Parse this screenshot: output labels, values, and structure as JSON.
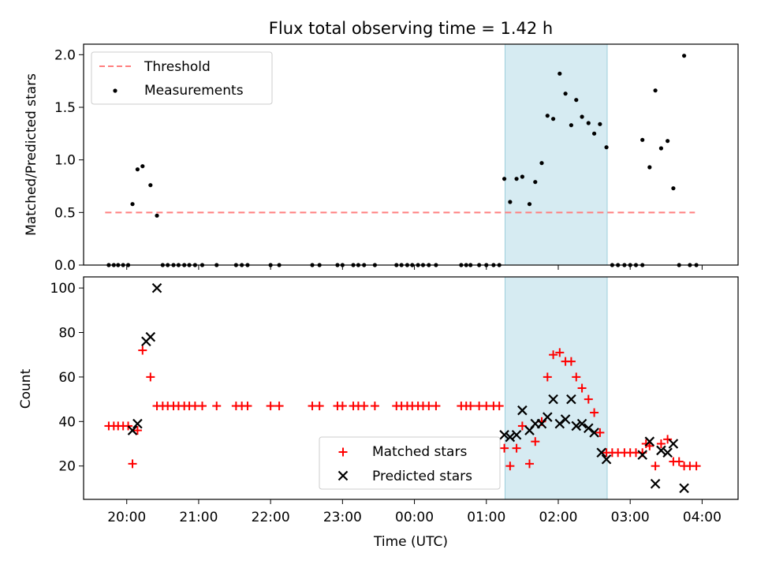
{
  "title": "Flux total observing time = 1.42 h",
  "colors": {
    "threshold": "#ff7f7f",
    "measurements": "#000000",
    "matched": "#ff0000",
    "predicted": "#000000",
    "shade": "#add8e6"
  },
  "chart_data": [
    {
      "type": "scatter",
      "ylabel": "Matched/Predicted stars",
      "ylim": [
        0,
        2.1
      ],
      "yticks": [
        "0.0",
        "0.5",
        "1.0",
        "1.5",
        "2.0"
      ],
      "ytick_values": [
        0,
        0.5,
        1.0,
        1.5,
        2.0
      ],
      "xlim": [
        19.4,
        28.5
      ],
      "xtick_values": [
        20,
        21,
        22,
        23,
        24,
        25,
        26,
        27,
        28
      ],
      "shaded_span": [
        25.26,
        26.68
      ],
      "grid": false,
      "legend_position": "upper-left",
      "legend": {
        "threshold": "Threshold",
        "measurements": "Measurements"
      },
      "threshold": {
        "value": 0.5,
        "x": [
          19.7,
          27.9
        ]
      },
      "series": [
        {
          "name": "Measurements",
          "marker": "dot",
          "points": [
            [
              19.75,
              0
            ],
            [
              19.82,
              0
            ],
            [
              19.88,
              0
            ],
            [
              19.95,
              0
            ],
            [
              20.02,
              0
            ],
            [
              20.08,
              0.58
            ],
            [
              20.15,
              0.91
            ],
            [
              20.22,
              0.94
            ],
            [
              20.33,
              0.76
            ],
            [
              20.42,
              0.47
            ],
            [
              20.5,
              0
            ],
            [
              20.57,
              0
            ],
            [
              20.65,
              0
            ],
            [
              20.72,
              0
            ],
            [
              20.8,
              0
            ],
            [
              20.87,
              0
            ],
            [
              20.95,
              0
            ],
            [
              21.05,
              0
            ],
            [
              21.25,
              0
            ],
            [
              21.52,
              0
            ],
            [
              21.6,
              0
            ],
            [
              21.68,
              0
            ],
            [
              22.0,
              0
            ],
            [
              22.12,
              0
            ],
            [
              22.58,
              0
            ],
            [
              22.68,
              0
            ],
            [
              22.93,
              0
            ],
            [
              23.0,
              0
            ],
            [
              23.15,
              0
            ],
            [
              23.22,
              0
            ],
            [
              23.3,
              0
            ],
            [
              23.45,
              0
            ],
            [
              23.75,
              0
            ],
            [
              23.82,
              0
            ],
            [
              23.9,
              0
            ],
            [
              23.97,
              0
            ],
            [
              24.05,
              0
            ],
            [
              24.12,
              0
            ],
            [
              24.2,
              0
            ],
            [
              24.3,
              0
            ],
            [
              24.65,
              0
            ],
            [
              24.72,
              0
            ],
            [
              24.78,
              0
            ],
            [
              24.9,
              0
            ],
            [
              25.0,
              0
            ],
            [
              25.1,
              0
            ],
            [
              25.18,
              0
            ],
            [
              25.25,
              0.82
            ],
            [
              25.33,
              0.6
            ],
            [
              25.42,
              0.82
            ],
            [
              25.5,
              0.84
            ],
            [
              25.6,
              0.58
            ],
            [
              25.68,
              0.79
            ],
            [
              25.77,
              0.97
            ],
            [
              25.85,
              1.42
            ],
            [
              25.93,
              1.39
            ],
            [
              26.02,
              1.82
            ],
            [
              26.1,
              1.63
            ],
            [
              26.18,
              1.33
            ],
            [
              26.25,
              1.57
            ],
            [
              26.33,
              1.41
            ],
            [
              26.42,
              1.35
            ],
            [
              26.5,
              1.25
            ],
            [
              26.58,
              1.34
            ],
            [
              26.67,
              1.12
            ],
            [
              26.75,
              0
            ],
            [
              26.83,
              0
            ],
            [
              26.92,
              0
            ],
            [
              27.0,
              0
            ],
            [
              27.08,
              0
            ],
            [
              27.17,
              0
            ],
            [
              27.17,
              1.19
            ],
            [
              27.27,
              0.93
            ],
            [
              27.35,
              1.66
            ],
            [
              27.43,
              1.11
            ],
            [
              27.52,
              1.18
            ],
            [
              27.6,
              0.73
            ],
            [
              27.68,
              0
            ],
            [
              27.75,
              1.99
            ],
            [
              27.83,
              0
            ],
            [
              27.92,
              0
            ]
          ]
        }
      ]
    },
    {
      "type": "scatter",
      "xlabel": "Time (UTC)",
      "ylabel": "Count",
      "ylim": [
        5,
        105
      ],
      "yticks": [
        "20",
        "40",
        "60",
        "80",
        "100"
      ],
      "ytick_values": [
        20,
        40,
        60,
        80,
        100
      ],
      "xlim": [
        19.4,
        28.5
      ],
      "xtick_values": [
        20,
        21,
        22,
        23,
        24,
        25,
        26,
        27,
        28
      ],
      "xticks": [
        "20:00",
        "21:00",
        "22:00",
        "23:00",
        "00:00",
        "01:00",
        "02:00",
        "03:00",
        "04:00"
      ],
      "shaded_span": [
        25.26,
        26.68
      ],
      "grid": false,
      "legend_position": "lower-center",
      "series": [
        {
          "name": "Matched stars",
          "marker": "plus",
          "points": [
            [
              19.75,
              38
            ],
            [
              19.82,
              38
            ],
            [
              19.88,
              38
            ],
            [
              19.95,
              38
            ],
            [
              20.02,
              38
            ],
            [
              20.08,
              21
            ],
            [
              20.15,
              36
            ],
            [
              20.22,
              72
            ],
            [
              20.33,
              60
            ],
            [
              20.42,
              47
            ],
            [
              20.5,
              47
            ],
            [
              20.57,
              47
            ],
            [
              20.65,
              47
            ],
            [
              20.72,
              47
            ],
            [
              20.8,
              47
            ],
            [
              20.87,
              47
            ],
            [
              20.95,
              47
            ],
            [
              21.05,
              47
            ],
            [
              21.25,
              47
            ],
            [
              21.52,
              47
            ],
            [
              21.6,
              47
            ],
            [
              21.68,
              47
            ],
            [
              22.0,
              47
            ],
            [
              22.12,
              47
            ],
            [
              22.58,
              47
            ],
            [
              22.68,
              47
            ],
            [
              22.93,
              47
            ],
            [
              23.0,
              47
            ],
            [
              23.15,
              47
            ],
            [
              23.22,
              47
            ],
            [
              23.3,
              47
            ],
            [
              23.45,
              47
            ],
            [
              23.75,
              47
            ],
            [
              23.82,
              47
            ],
            [
              23.9,
              47
            ],
            [
              23.97,
              47
            ],
            [
              24.05,
              47
            ],
            [
              24.12,
              47
            ],
            [
              24.2,
              47
            ],
            [
              24.3,
              47
            ],
            [
              24.65,
              47
            ],
            [
              24.72,
              47
            ],
            [
              24.78,
              47
            ],
            [
              24.9,
              47
            ],
            [
              25.0,
              47
            ],
            [
              25.1,
              47
            ],
            [
              25.18,
              47
            ],
            [
              25.25,
              28
            ],
            [
              25.33,
              20
            ],
            [
              25.42,
              28
            ],
            [
              25.5,
              38
            ],
            [
              25.6,
              21
            ],
            [
              25.68,
              31
            ],
            [
              25.77,
              40
            ],
            [
              25.85,
              60
            ],
            [
              25.93,
              70
            ],
            [
              26.02,
              71
            ],
            [
              26.1,
              67
            ],
            [
              26.18,
              67
            ],
            [
              26.25,
              60
            ],
            [
              26.33,
              55
            ],
            [
              26.42,
              50
            ],
            [
              26.5,
              44
            ],
            [
              26.58,
              35
            ],
            [
              26.67,
              26
            ],
            [
              26.75,
              26
            ],
            [
              26.83,
              26
            ],
            [
              26.92,
              26
            ],
            [
              27.0,
              26
            ],
            [
              27.08,
              26
            ],
            [
              27.17,
              26
            ],
            [
              27.22,
              30
            ],
            [
              27.27,
              29
            ],
            [
              27.35,
              20
            ],
            [
              27.43,
              30
            ],
            [
              27.52,
              32
            ],
            [
              27.6,
              22
            ],
            [
              27.68,
              22
            ],
            [
              27.75,
              20
            ],
            [
              27.83,
              20
            ],
            [
              27.92,
              20
            ]
          ]
        },
        {
          "name": "Predicted stars",
          "marker": "x",
          "points": [
            [
              20.08,
              36
            ],
            [
              20.15,
              39
            ],
            [
              20.27,
              76
            ],
            [
              20.33,
              78
            ],
            [
              20.42,
              100
            ],
            [
              25.25,
              34
            ],
            [
              25.33,
              33
            ],
            [
              25.42,
              34
            ],
            [
              25.5,
              45
            ],
            [
              25.6,
              36
            ],
            [
              25.68,
              39
            ],
            [
              25.77,
              39
            ],
            [
              25.85,
              42
            ],
            [
              25.93,
              50
            ],
            [
              26.02,
              39
            ],
            [
              26.1,
              41
            ],
            [
              26.18,
              50
            ],
            [
              26.25,
              38
            ],
            [
              26.33,
              39
            ],
            [
              26.42,
              37
            ],
            [
              26.5,
              35
            ],
            [
              26.6,
              26
            ],
            [
              26.67,
              23
            ],
            [
              27.17,
              25
            ],
            [
              27.27,
              31
            ],
            [
              27.35,
              12
            ],
            [
              27.43,
              27
            ],
            [
              27.52,
              26
            ],
            [
              27.6,
              30
            ],
            [
              27.75,
              10
            ]
          ]
        }
      ]
    }
  ]
}
